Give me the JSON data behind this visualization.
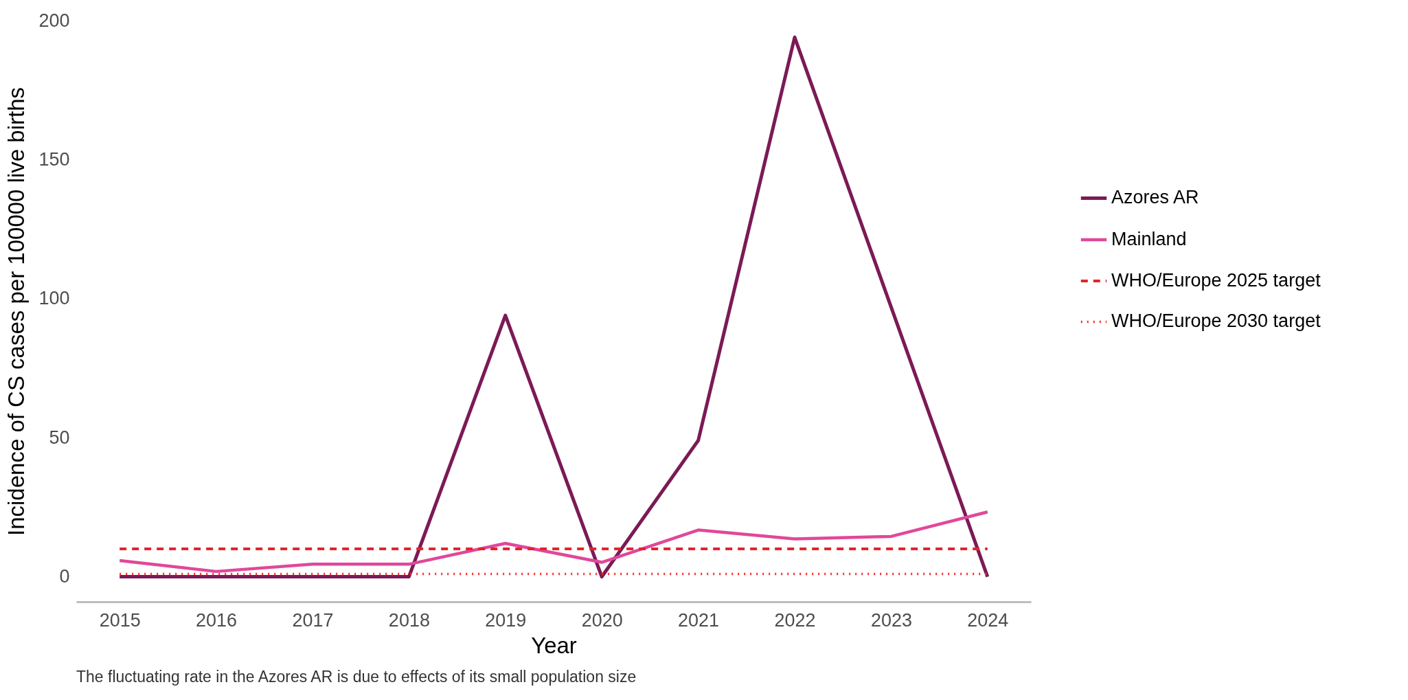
{
  "chart_data": {
    "type": "line",
    "xlabel": "Year",
    "ylabel": "Incidence of CS cases per 100000 live births",
    "categories": [
      "2015",
      "2016",
      "2017",
      "2018",
      "2019",
      "2020",
      "2021",
      "2022",
      "2023",
      "2024"
    ],
    "series": [
      {
        "name": "Azores AR",
        "color": "#7b1a56",
        "values": [
          0,
          0,
          0,
          0,
          94,
          0,
          49,
          194,
          97,
          0
        ]
      },
      {
        "name": "Mainland",
        "color": "#e0489a",
        "values": [
          5.8,
          1.9,
          4.5,
          4.5,
          12,
          5.2,
          16.8,
          13.6,
          14.5,
          23.3
        ]
      }
    ],
    "ylim": [
      -9,
      200
    ],
    "yticks": [
      0,
      50,
      100,
      150,
      200
    ],
    "grid": false,
    "legend": "right",
    "line_style": "solid",
    "ref_lines": [
      {
        "axis": "y",
        "value": 10,
        "label": "WHO/Europe 2025 target",
        "color": "#e3242b",
        "line_style": "dashed"
      },
      {
        "axis": "y",
        "value": 1,
        "label": "WHO/Europe 2030 target",
        "color": "#ff2a2a",
        "line_style": "dotted"
      }
    ],
    "annotations": [
      "The fluctuating rate in the Azores AR is due to effects of its small population size"
    ]
  }
}
